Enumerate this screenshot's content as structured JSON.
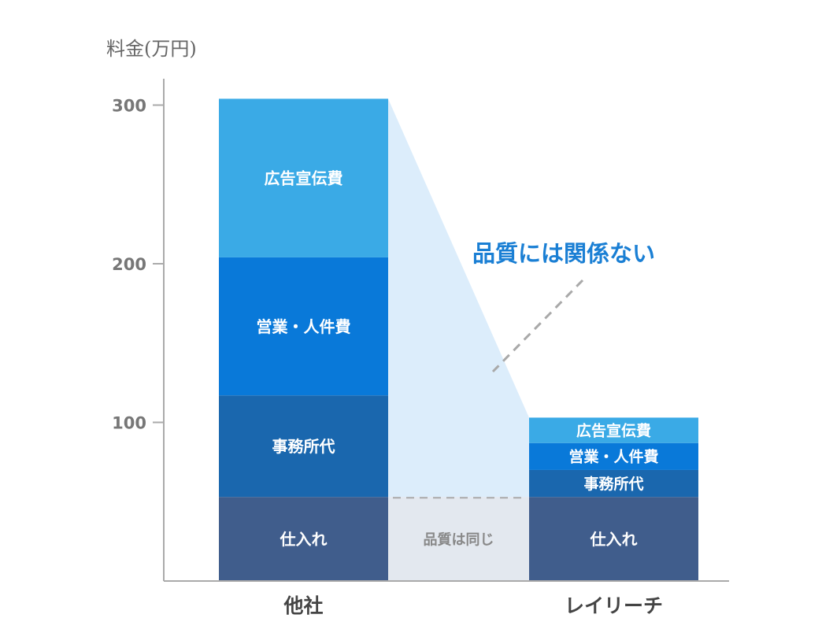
{
  "chart_data": {
    "type": "bar",
    "stacked": true,
    "ylabel": "料金(万円)",
    "categories": [
      "他社",
      "レイリーチ"
    ],
    "yticks": [
      100,
      200,
      300
    ],
    "ylim": [
      0,
      320
    ],
    "grid": false,
    "series": [
      {
        "name": "仕入れ",
        "values": [
          53,
          53
        ],
        "color": "#405d8c"
      },
      {
        "name": "事務所代",
        "values": [
          64,
          17
        ],
        "color": "#1a67ae"
      },
      {
        "name": "営業・人件費",
        "values": [
          87,
          17
        ],
        "color": "#0979d9"
      },
      {
        "name": "広告宣伝費",
        "values": [
          100,
          16
        ],
        "color": "#3aaae6"
      }
    ],
    "annotations": {
      "difference_label": "品質には関係ない",
      "difference_color": "#1a7fd4",
      "difference_fill": "#dcedfb",
      "same_quality_label": "品質は同じ",
      "same_quality_fill": "#e3e8ef"
    }
  }
}
